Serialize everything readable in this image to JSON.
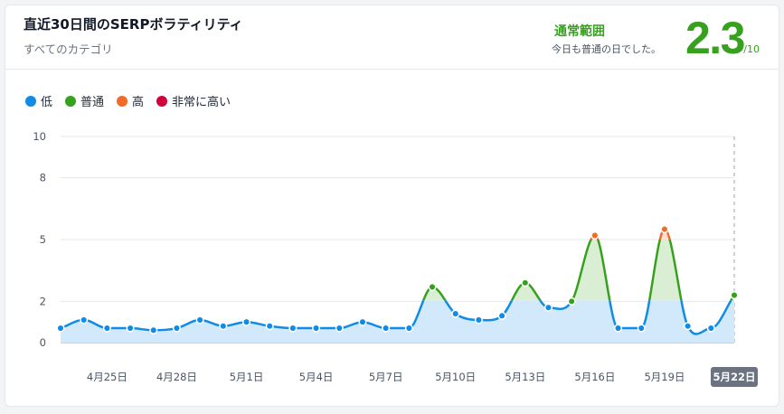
{
  "header": {
    "title": "直近30日間のSERPボラティリティ",
    "subtitle": "すべてのカテゴリ",
    "status_label": "通常範囲",
    "status_desc": "今日も普通の日でした。",
    "score": "2.3",
    "score_max": "/10"
  },
  "colors": {
    "low": "#118ce6",
    "normal": "#37a11f",
    "high": "#f06a2a",
    "very_high": "#d1003a"
  },
  "chart_data": {
    "type": "area",
    "title": "",
    "legend": [
      {
        "key": "low",
        "label": "低"
      },
      {
        "key": "normal",
        "label": "普通"
      },
      {
        "key": "high",
        "label": "高"
      },
      {
        "key": "very_high",
        "label": "非常に高い"
      }
    ],
    "legend_placement": "top-left",
    "y_ticks": [
      0,
      2,
      5,
      8,
      10
    ],
    "ylim": [
      0,
      10
    ],
    "grid": true,
    "x_tick_labels": [
      "4月25日",
      "4月28日",
      "5月1日",
      "5月4日",
      "5月7日",
      "5月10日",
      "5月13日",
      "5月16日",
      "5月19日",
      "5月22日"
    ],
    "highlighted_label": "5月22日",
    "x": [
      "4月23日",
      "4月24日",
      "4月25日",
      "4月26日",
      "4月27日",
      "4月28日",
      "4月29日",
      "4月30日",
      "5月1日",
      "5月2日",
      "5月3日",
      "5月4日",
      "5月5日",
      "5月6日",
      "5月7日",
      "5月8日",
      "5月9日",
      "5月10日",
      "5月11日",
      "5月12日",
      "5月13日",
      "5月14日",
      "5月15日",
      "5月16日",
      "5月17日",
      "5月18日",
      "5月19日",
      "5月20日",
      "5月21日",
      "5月22日"
    ],
    "values": [
      0.7,
      1.1,
      0.7,
      0.7,
      0.6,
      0.7,
      1.1,
      0.8,
      1.0,
      0.8,
      0.7,
      0.7,
      0.7,
      1.0,
      0.7,
      0.7,
      2.7,
      1.4,
      1.1,
      1.3,
      2.9,
      1.7,
      2.0,
      5.2,
      0.7,
      0.7,
      5.5,
      0.8,
      0.7,
      2.3
    ]
  }
}
